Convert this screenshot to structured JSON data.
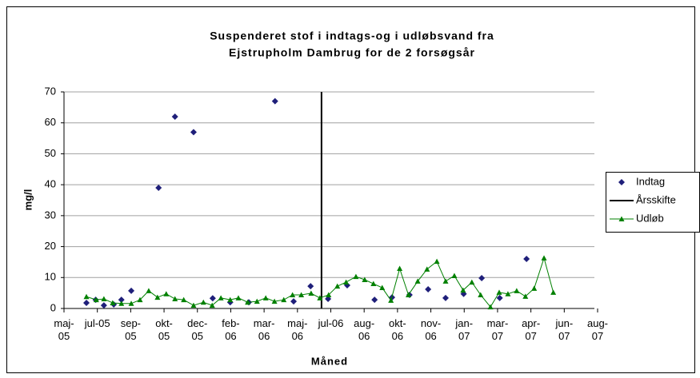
{
  "chart_data": {
    "type": "scatter",
    "title": [
      "Suspenderet stof i indtags-og i udløbsvand fra",
      "Ejstrupholm Dambrug for de 2 forsøgsår"
    ],
    "ylabel": "mg/l",
    "xlabel": "Måned",
    "xlim": [
      0,
      976
    ],
    "xticks": [
      {
        "value": 0,
        "label": "maj-05"
      },
      {
        "value": 61,
        "label": "jul-05"
      },
      {
        "value": 122,
        "label": "sep-05"
      },
      {
        "value": 183,
        "label": "okt-05"
      },
      {
        "value": 244,
        "label": "dec-05"
      },
      {
        "value": 305,
        "label": "feb-06"
      },
      {
        "value": 366,
        "label": "mar-06"
      },
      {
        "value": 427,
        "label": "maj-06"
      },
      {
        "value": 488,
        "label": "jul-06"
      },
      {
        "value": 549,
        "label": "aug-06"
      },
      {
        "value": 610,
        "label": "okt-06"
      },
      {
        "value": 671,
        "label": "nov-06"
      },
      {
        "value": 732,
        "label": "jan-07"
      },
      {
        "value": 793,
        "label": "mar-07"
      },
      {
        "value": 854,
        "label": "apr-07"
      },
      {
        "value": 915,
        "label": "jun-07"
      },
      {
        "value": 976,
        "label": "aug-07"
      }
    ],
    "ylim": [
      0,
      70
    ],
    "yticks": [
      0,
      10,
      20,
      30,
      40,
      50,
      60,
      70
    ],
    "grid": true,
    "legend": "right",
    "series": [
      {
        "name": "Indtag",
        "color": "#1f1f7a",
        "marker": "diamond",
        "x": [
          41,
          58,
          73,
          91,
          105,
          123,
          173,
          203,
          237,
          272,
          304,
          338,
          386,
          420,
          451,
          483,
          518,
          568,
          600,
          632,
          666,
          698,
          731,
          764,
          797,
          846
        ],
        "values": [
          1.8,
          2.8,
          1.0,
          1.3,
          2.8,
          5.7,
          39,
          62,
          57,
          3.3,
          2,
          2,
          67,
          2.3,
          7.2,
          3.1,
          7.5,
          2.8,
          3.6,
          4.4,
          6.2,
          3.4,
          4.7,
          9.8,
          3.4,
          16
        ]
      },
      {
        "name": "Årsskifte",
        "color": "#000000",
        "marker": "line",
        "x": [
          471,
          471
        ],
        "values": [
          0,
          70
        ]
      },
      {
        "name": "Udløb",
        "color": "#008000",
        "marker": "triangle",
        "x": [
          41,
          59,
          73,
          89,
          105,
          123,
          139,
          155,
          171,
          187,
          203,
          219,
          237,
          255,
          271,
          287,
          304,
          319,
          336,
          353,
          369,
          385,
          402,
          418,
          434,
          452,
          468,
          484,
          500,
          516,
          534,
          550,
          566,
          582,
          598,
          614,
          630,
          647,
          664,
          682,
          698,
          714,
          730,
          746,
          762,
          780,
          796,
          812,
          828,
          844,
          860,
          878,
          895
        ],
        "values": [
          3.8,
          2.8,
          3.1,
          1.8,
          1.6,
          1.6,
          2.8,
          5.7,
          3.6,
          4.7,
          3.1,
          2.8,
          1.0,
          2.0,
          1.0,
          3.4,
          2.8,
          3.4,
          2.0,
          2.3,
          3.4,
          2.3,
          2.8,
          4.4,
          4.4,
          4.9,
          3.4,
          4.4,
          7.2,
          8.5,
          10.3,
          9.3,
          8.0,
          6.7,
          2.6,
          12.9,
          4.4,
          8.8,
          12.7,
          15.2,
          8.8,
          10.6,
          5.9,
          8.5,
          4.4,
          0.5,
          5.2,
          4.7,
          5.7,
          3.9,
          6.5,
          16.3,
          5.2
        ]
      }
    ]
  }
}
